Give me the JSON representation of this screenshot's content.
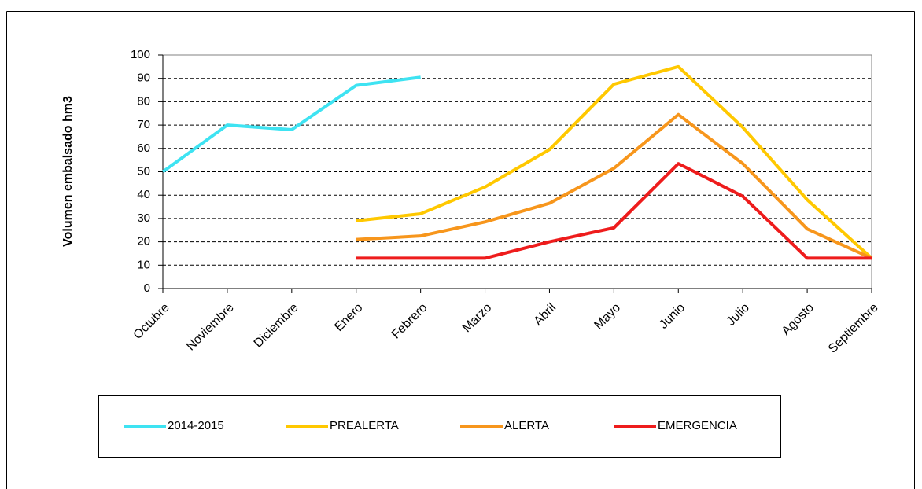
{
  "chart_data": {
    "type": "line",
    "y_label": "Volumen embalsado hm3",
    "categories": [
      "Octubre",
      "Noviembre",
      "Diciembre",
      "Enero",
      "Febrero",
      "Marzo",
      "Abril",
      "Mayo",
      "Junio",
      "Julio",
      "Agosto",
      "Septiembre"
    ],
    "series": [
      {
        "name": "2014-2015",
        "color": "#3ee3f2",
        "values": [
          50,
          70,
          68,
          87,
          90.5,
          null,
          null,
          null,
          null,
          null,
          null,
          null
        ]
      },
      {
        "name": "PREALERTA",
        "color": "#ffc800",
        "values": [
          null,
          null,
          null,
          29,
          32,
          43.5,
          59.5,
          87.5,
          95,
          69,
          38,
          13
        ]
      },
      {
        "name": "ALERTA",
        "color": "#f7961c",
        "values": [
          null,
          null,
          null,
          21,
          22.5,
          28.5,
          36.5,
          51.5,
          74.5,
          53.5,
          25.5,
          13
        ]
      },
      {
        "name": "EMERGENCIA",
        "color": "#ee1c1c",
        "values": [
          null,
          null,
          null,
          13,
          13,
          13,
          20,
          26,
          53.5,
          39.5,
          13,
          13
        ]
      }
    ],
    "ylim": [
      0,
      100
    ],
    "yticks": [
      0,
      10,
      20,
      30,
      40,
      50,
      60,
      70,
      80,
      90,
      100
    ],
    "grid": true
  }
}
